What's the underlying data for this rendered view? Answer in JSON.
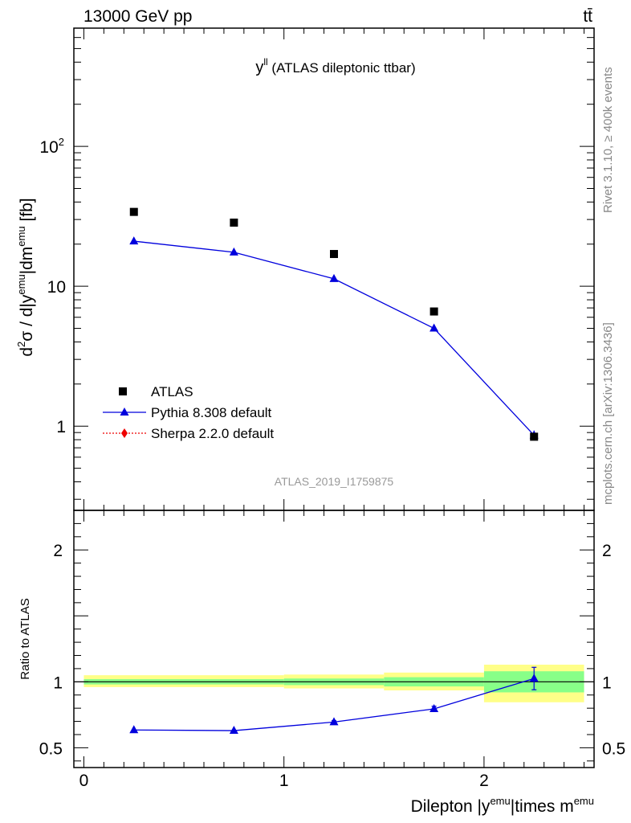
{
  "header": {
    "left": "13000 GeV pp",
    "right": "tt̄"
  },
  "side_labels": {
    "rivet": "Rivet 3.1.10, ≥ 400k events",
    "mcplots": "mcplots.cern.ch [arXiv:1306.3436]"
  },
  "chart_data": [
    {
      "type": "scatter",
      "title": "y^ll (ATLAS dileptonic ttbar)",
      "title_main": "y",
      "title_sup": "ll",
      "title_rest": " (ATLAS dileptonic ttbar)",
      "ylabel": "d²σ / d|y^emu|dm^emu [fb]",
      "ylabel_parts": [
        "d",
        "2",
        "σ / d|y",
        "emu",
        "|dm",
        "emu",
        " [fb]"
      ],
      "yscale": "log",
      "ylim": [
        0.25,
        700
      ],
      "xlim": [
        -0.05,
        2.55
      ],
      "yticks": [
        {
          "value": 1,
          "label": "1"
        },
        {
          "value": 10,
          "label": "10"
        },
        {
          "value": 100,
          "label": "10",
          "sup": "2"
        }
      ],
      "analysis_id": "ATLAS_2019_I1759875",
      "legend_position": "bottom-left",
      "series": [
        {
          "name": "ATLAS",
          "color": "#000000",
          "marker": "square",
          "x": [
            0.25,
            0.75,
            1.25,
            1.75,
            2.25
          ],
          "y": [
            34,
            28.5,
            17,
            6.6,
            0.84
          ]
        },
        {
          "name": "Pythia 8.308 default",
          "color": "#0000dd",
          "marker": "triangle",
          "x": [
            0.25,
            0.75,
            1.25,
            1.75,
            2.25
          ],
          "y": [
            21,
            17.5,
            11.3,
            5.0,
            0.86
          ],
          "yerr": [
            0,
            0,
            0,
            0,
            0.07
          ]
        },
        {
          "name": "Sherpa 2.2.0 default",
          "color": "#ee0000",
          "marker": "diamond",
          "x": [],
          "y": []
        }
      ]
    },
    {
      "type": "scatter",
      "xlabel": "Dilepton |y^emu|times m^emu",
      "xlabel_parts": [
        "Dilepton |y",
        "emu",
        "|times m",
        "emu"
      ],
      "ylabel": "Ratio to ATLAS",
      "ylim": [
        0.35,
        2.3
      ],
      "xlim": [
        -0.05,
        2.55
      ],
      "xticks": [
        {
          "value": 0,
          "label": "0"
        },
        {
          "value": 1,
          "label": "1"
        },
        {
          "value": 2,
          "label": "2"
        }
      ],
      "yticks": [
        {
          "value": 0.5,
          "label": "0.5"
        },
        {
          "value": 1,
          "label": "1"
        },
        {
          "value": 2,
          "label": "2"
        }
      ],
      "bands": [
        {
          "x0": 0.0,
          "x1": 1.0,
          "inner": [
            0.98,
            1.02
          ],
          "outer": [
            0.96,
            1.05
          ]
        },
        {
          "x0": 1.0,
          "x1": 1.5,
          "inner": [
            0.975,
            1.025
          ],
          "outer": [
            0.95,
            1.055
          ]
        },
        {
          "x0": 1.5,
          "x1": 2.0,
          "inner": [
            0.965,
            1.035
          ],
          "outer": [
            0.935,
            1.07
          ]
        },
        {
          "x0": 2.0,
          "x1": 2.5,
          "inner": [
            0.92,
            1.08
          ],
          "outer": [
            0.845,
            1.13
          ]
        }
      ],
      "series": [
        {
          "name": "Pythia 8.308 default",
          "color": "#0000dd",
          "marker": "triangle",
          "x": [
            0.25,
            0.75,
            1.25,
            1.75,
            2.25
          ],
          "y": [
            0.635,
            0.63,
            0.695,
            0.795,
            1.025
          ],
          "yerr": [
            0,
            0,
            0.01,
            0.02,
            0.085
          ]
        }
      ]
    }
  ]
}
